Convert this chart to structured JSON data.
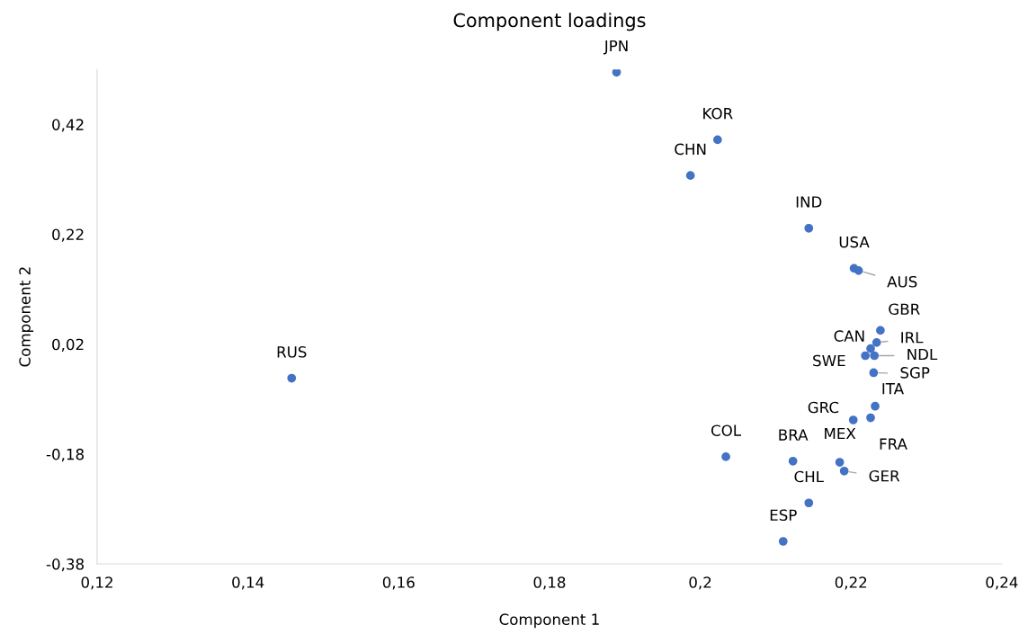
{
  "chart_data": {
    "type": "scatter",
    "title": "Component loadings",
    "xlabel": "Component 1",
    "ylabel": "Component 2",
    "x": [
      0.1889,
      0.2023,
      0.1987,
      0.2144,
      0.2204,
      0.221,
      0.2239,
      0.2234,
      0.2226,
      0.2219,
      0.2231,
      0.223,
      0.2232,
      0.2203,
      0.2226,
      0.1458,
      0.2034,
      0.2123,
      0.2185,
      0.2191,
      0.2144,
      0.211
    ],
    "series": [
      {
        "color": "#4472c4",
        "values": [
          0.515,
          0.392,
          0.327,
          0.231,
          0.158,
          0.154,
          0.045,
          0.023,
          0.012,
          -0.001,
          -0.001,
          -0.032,
          -0.093,
          -0.118,
          -0.114,
          -0.042,
          -0.185,
          -0.193,
          -0.195,
          -0.211,
          -0.269,
          -0.339
        ]
      }
    ],
    "annotations": [
      {
        "text": "JPN",
        "x": 0.1889,
        "y": 0.515
      },
      {
        "text": "KOR",
        "x": 0.2023,
        "y": 0.392
      },
      {
        "text": "CHN",
        "x": 0.1987,
        "y": 0.327
      },
      {
        "text": "IND",
        "x": 0.2144,
        "y": 0.231
      },
      {
        "text": "USA",
        "x": 0.2204,
        "y": 0.158
      },
      {
        "text": "AUS",
        "x": 0.221,
        "y": 0.154
      },
      {
        "text": "GBR",
        "x": 0.2239,
        "y": 0.045
      },
      {
        "text": "IRL",
        "x": 0.2234,
        "y": 0.023
      },
      {
        "text": "CAN",
        "x": 0.2226,
        "y": 0.012
      },
      {
        "text": "SWE",
        "x": 0.2219,
        "y": -0.001
      },
      {
        "text": "NDL",
        "x": 0.2231,
        "y": -0.001
      },
      {
        "text": "SGP",
        "x": 0.223,
        "y": -0.032
      },
      {
        "text": "ITA",
        "x": 0.2232,
        "y": -0.093
      },
      {
        "text": "GRC",
        "x": 0.2203,
        "y": -0.118
      },
      {
        "text": "FRA",
        "x": 0.2226,
        "y": -0.114
      },
      {
        "text": "RUS",
        "x": 0.1458,
        "y": -0.042
      },
      {
        "text": "COL",
        "x": 0.2034,
        "y": -0.185
      },
      {
        "text": "BRA",
        "x": 0.2123,
        "y": -0.193
      },
      {
        "text": "MEX",
        "x": 0.2185,
        "y": -0.195
      },
      {
        "text": "GER",
        "x": 0.2191,
        "y": -0.211
      },
      {
        "text": "CHL",
        "x": 0.2144,
        "y": -0.269
      },
      {
        "text": "ESP",
        "x": 0.211,
        "y": -0.339
      }
    ],
    "xlim": [
      0.12,
      0.24
    ],
    "xticks": [
      {
        "value": 0.12,
        "label": "0,12"
      },
      {
        "value": 0.14,
        "label": "0,14"
      },
      {
        "value": 0.16,
        "label": "0,16"
      },
      {
        "value": 0.18,
        "label": "0,18"
      },
      {
        "value": 0.2,
        "label": "0,2"
      },
      {
        "value": 0.22,
        "label": "0,22"
      },
      {
        "value": 0.24,
        "label": "0,24"
      }
    ],
    "ylim": [
      -0.38,
      0.52
    ],
    "yticks": [
      {
        "value": -0.38,
        "label": "-0,38"
      },
      {
        "value": -0.18,
        "label": "-0,18"
      },
      {
        "value": 0.02,
        "label": "0,02"
      },
      {
        "value": 0.22,
        "label": "0,22"
      },
      {
        "value": 0.42,
        "label": "0,42"
      }
    ],
    "marker": "circle",
    "grid": false,
    "legend": false
  }
}
